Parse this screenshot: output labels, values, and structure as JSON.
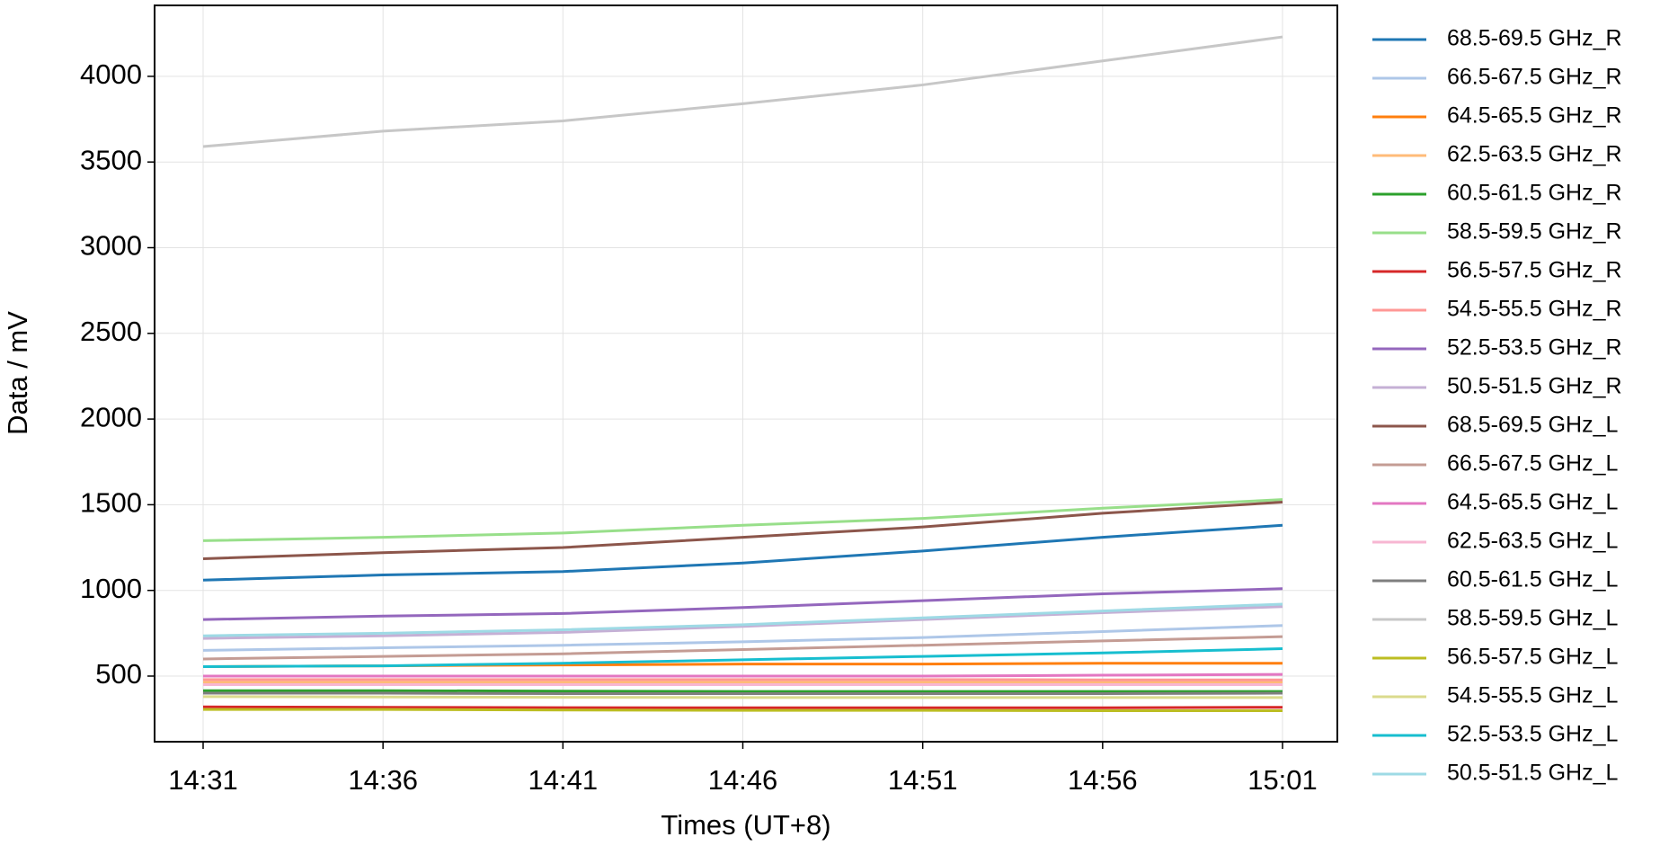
{
  "chart_data": {
    "type": "line",
    "xlabel": "Times (UT+8)",
    "ylabel": "Data / mV",
    "categories": [
      "14:31",
      "14:36",
      "14:41",
      "14:46",
      "14:51",
      "14:56",
      "15:01"
    ],
    "ylim": [
      117,
      4414
    ],
    "yticks": [
      500,
      1000,
      1500,
      2000,
      2500,
      3000,
      3500,
      4000
    ],
    "grid": true,
    "legend": "outside right",
    "series": [
      {
        "name": "68.5-69.5 GHz_R",
        "color": "#1f77b4",
        "values": [
          1060,
          1090,
          1110,
          1160,
          1230,
          1310,
          1380
        ]
      },
      {
        "name": "66.5-67.5 GHz_R",
        "color": "#aec7e8",
        "values": [
          650,
          665,
          680,
          700,
          725,
          760,
          795
        ]
      },
      {
        "name": "64.5-65.5 GHz_R",
        "color": "#ff7f0e",
        "values": [
          555,
          560,
          565,
          570,
          570,
          575,
          575
        ]
      },
      {
        "name": "62.5-63.5 GHz_R",
        "color": "#ffbb78",
        "values": [
          465,
          465,
          465,
          465,
          465,
          465,
          465
        ]
      },
      {
        "name": "60.5-61.5 GHz_R",
        "color": "#2ca02c",
        "values": [
          415,
          415,
          412,
          410,
          410,
          410,
          410
        ]
      },
      {
        "name": "58.5-59.5 GHz_R",
        "color": "#98df8a",
        "values": [
          1290,
          1310,
          1335,
          1380,
          1420,
          1480,
          1530
        ]
      },
      {
        "name": "56.5-57.5 GHz_R",
        "color": "#d62728",
        "values": [
          320,
          318,
          316,
          315,
          315,
          315,
          318
        ]
      },
      {
        "name": "54.5-55.5 GHz_R",
        "color": "#ff9896",
        "values": [
          480,
          480,
          480,
          480,
          480,
          478,
          478
        ]
      },
      {
        "name": "52.5-53.5 GHz_R",
        "color": "#9467bd",
        "values": [
          830,
          850,
          865,
          900,
          940,
          980,
          1010
        ]
      },
      {
        "name": "50.5-51.5 GHz_R",
        "color": "#c5b0d5",
        "values": [
          720,
          735,
          755,
          790,
          830,
          870,
          905
        ]
      },
      {
        "name": "68.5-69.5 GHz_L",
        "color": "#8c564b",
        "values": [
          1185,
          1220,
          1250,
          1310,
          1370,
          1450,
          1515
        ]
      },
      {
        "name": "66.5-67.5 GHz_L",
        "color": "#c49c94",
        "values": [
          600,
          615,
          630,
          655,
          680,
          705,
          730
        ]
      },
      {
        "name": "64.5-65.5 GHz_L",
        "color": "#e377c2",
        "values": [
          500,
          500,
          500,
          500,
          500,
          505,
          510
        ]
      },
      {
        "name": "62.5-63.5 GHz_L",
        "color": "#f7b6d2",
        "values": [
          450,
          450,
          450,
          450,
          450,
          450,
          450
        ]
      },
      {
        "name": "60.5-61.5 GHz_L",
        "color": "#7f7f7f",
        "values": [
          400,
          400,
          398,
          398,
          398,
          398,
          400
        ]
      },
      {
        "name": "58.5-59.5 GHz_L",
        "color": "#c7c7c7",
        "values": [
          3590,
          3680,
          3740,
          3840,
          3950,
          4090,
          4230
        ]
      },
      {
        "name": "56.5-57.5 GHz_L",
        "color": "#bcbd22",
        "values": [
          305,
          305,
          302,
          300,
          300,
          298,
          298
        ]
      },
      {
        "name": "54.5-55.5 GHz_L",
        "color": "#dbdb8d",
        "values": [
          380,
          378,
          376,
          375,
          375,
          375,
          375
        ]
      },
      {
        "name": "52.5-53.5 GHz_L",
        "color": "#17becf",
        "values": [
          555,
          560,
          575,
          595,
          615,
          635,
          660
        ]
      },
      {
        "name": "50.5-51.5 GHz_L",
        "color": "#9edae5",
        "values": [
          735,
          750,
          770,
          800,
          840,
          880,
          920
        ]
      }
    ]
  }
}
